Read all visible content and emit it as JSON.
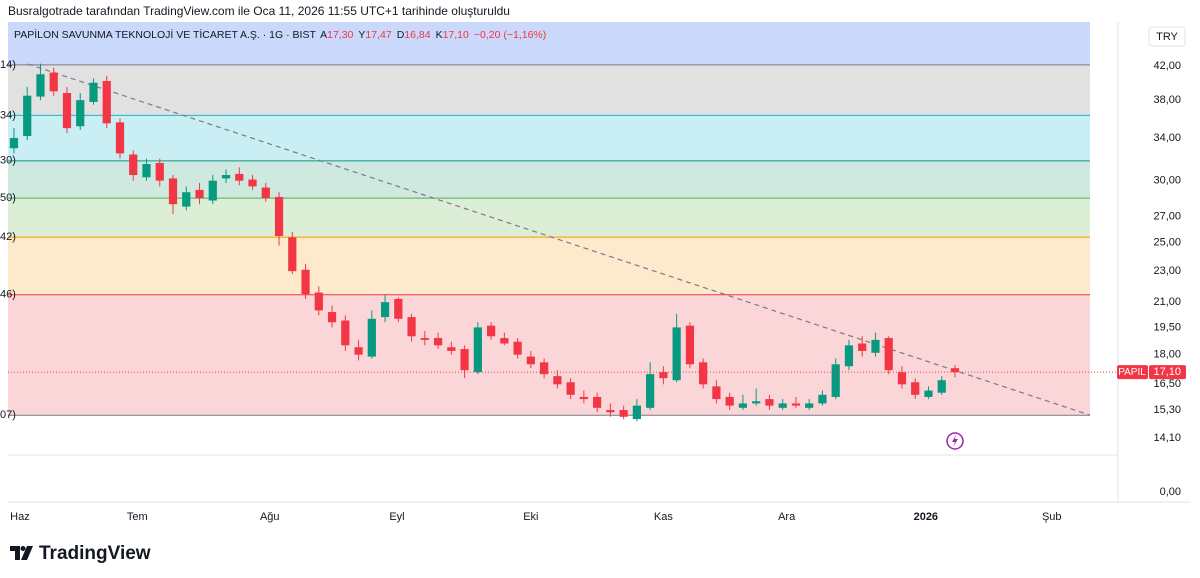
{
  "chart_data": {
    "type": "candlestick",
    "caption": "Busralgotrade tarafından TradingView.com ile Oca 11, 2026 11:55 UTC+1 tarihinde oluşturuldu",
    "title": "PAPİLON SAVUNMA TEKNOLOJİ VE TİCARET A.Ş. · 1G · BIST",
    "ohlc_legend": [
      {
        "key": "A",
        "value": "17,30"
      },
      {
        "key": "Y",
        "value": "17,47"
      },
      {
        "key": "D",
        "value": "16,84"
      },
      {
        "key": "K",
        "value": "17,10"
      }
    ],
    "change": "−0,20 (−1,16%)",
    "currency": "TRY",
    "symbol": "PAPIL",
    "last_price": {
      "value": 17.1,
      "label": "17,10"
    },
    "brand": "TradingView",
    "log_scale": true,
    "up_color": "#089981",
    "down_color": "#f23645",
    "xlim": [
      -0.45,
      83.3
    ],
    "ylim": [
      11.68,
      47.8
    ],
    "yticks": [
      {
        "value": 42,
        "label": "42,00"
      },
      {
        "value": 38,
        "label": "38,00"
      },
      {
        "value": 34,
        "label": "34,00"
      },
      {
        "value": 30,
        "label": "30,00"
      },
      {
        "value": 27,
        "label": "27,00"
      },
      {
        "value": 25,
        "label": "25,00"
      },
      {
        "value": 23,
        "label": "23,00"
      },
      {
        "value": 21,
        "label": "21,00"
      },
      {
        "value": 19.5,
        "label": "19,50"
      },
      {
        "value": 18,
        "label": "18,00"
      },
      {
        "value": 16.5,
        "label": "16,50"
      },
      {
        "value": 15.3,
        "label": "15,30"
      },
      {
        "value": 14.1,
        "label": "14,10"
      }
    ],
    "axis_floor_label": "0,00",
    "xticks": [
      {
        "value": 0.45,
        "label": "Haz"
      },
      {
        "value": 9.3,
        "label": "Tem"
      },
      {
        "value": 19.3,
        "label": "Ağu"
      },
      {
        "value": 28.9,
        "label": "Eyl"
      },
      {
        "value": 39.0,
        "label": "Eki"
      },
      {
        "value": 49.0,
        "label": "Kas"
      },
      {
        "value": 58.3,
        "label": "Ara"
      },
      {
        "value": 68.8,
        "label": "2026",
        "bold": true
      },
      {
        "value": 78.3,
        "label": "Şub"
      }
    ],
    "fib_levels": [
      {
        "value": 42.14,
        "label": "14)",
        "color": "#787b86",
        "fill": "#e1e1e1"
      },
      {
        "value": 36.34,
        "label": "34)",
        "color": "#22b5c9",
        "fill": "#c9eef4"
      },
      {
        "value": 31.8,
        "label": "30)",
        "color": "#089981",
        "fill": "#cfe9e0"
      },
      {
        "value": 28.5,
        "label": "50)",
        "color": "#4caf50",
        "fill": "#dcefd6"
      },
      {
        "value": 25.42,
        "label": "42)",
        "color": "#ff9800",
        "fill": "#fde9cb"
      },
      {
        "value": 21.46,
        "label": "46)",
        "color": "#f23645",
        "fill": "#fbd6d9"
      },
      {
        "value": 15.07,
        "label": "07)",
        "color": "#787b86",
        "fill": null
      }
    ],
    "trend_line": {
      "x": [
        1.06,
        81.2
      ],
      "y": [
        42.25,
        15.07
      ]
    },
    "open": [
      33,
      34.2,
      38.4,
      41.2,
      38.8,
      35.2,
      37.8,
      40.2,
      35.6,
      32.4,
      30.3,
      31.6,
      30.2,
      27.8,
      29.2,
      28.3,
      30.2,
      30.6,
      30.1,
      29.4,
      28.6,
      25.4,
      23.1,
      21.6,
      20.4,
      19.9,
      18.4,
      17.9,
      20.1,
      21.2,
      20.1,
      18.9,
      18.9,
      18.4,
      18.3,
      17.1,
      19.6,
      18.9,
      18.7,
      17.9,
      17.6,
      16.9,
      16.6,
      15.9,
      15.9,
      15.3,
      15.3,
      14.9,
      15.4,
      17.1,
      16.7,
      19.6,
      17.6,
      16.4,
      15.9,
      15.4,
      15.6,
      15.8,
      15.4,
      15.6,
      15.4,
      15.6,
      15.9,
      17.4,
      18.6,
      18.1,
      18.9,
      17.1,
      16.6,
      15.9,
      16.1,
      17.3
    ],
    "high": [
      35,
      39.5,
      42.3,
      41.8,
      39.5,
      38.8,
      40.5,
      40.8,
      36,
      32.8,
      32,
      32,
      30.5,
      29.5,
      29.8,
      30.5,
      31,
      31.2,
      30.5,
      29.8,
      29,
      25.8,
      23.5,
      22,
      20.8,
      20.2,
      18.8,
      20.5,
      21.5,
      21.3,
      20.3,
      19.3,
      19.2,
      18.7,
      18.5,
      19.8,
      19.8,
      19.2,
      18.9,
      18.2,
      17.8,
      17.2,
      16.8,
      16.2,
      16.1,
      15.6,
      15.5,
      15.8,
      17.6,
      17.4,
      20.3,
      19.8,
      17.8,
      16.7,
      16.1,
      16,
      16.3,
      16,
      15.8,
      15.9,
      15.8,
      16.2,
      17.8,
      18.8,
      19,
      19.2,
      19,
      17.4,
      16.8,
      16.4,
      16.9,
      17.47
    ],
    "low": [
      32.5,
      33.8,
      38,
      38.5,
      34.5,
      34.8,
      37.5,
      35,
      32,
      30,
      30,
      29.5,
      27.2,
      27.5,
      28,
      28,
      29.8,
      29.6,
      29.2,
      28.2,
      24.8,
      22.8,
      21.2,
      20.2,
      19.5,
      18.2,
      17.7,
      17.8,
      19.8,
      19.8,
      18.7,
      18.5,
      18.3,
      18,
      16.8,
      17,
      18.8,
      18.5,
      17.8,
      17.3,
      16.8,
      16.3,
      15.8,
      15.6,
      15.2,
      15,
      14.9,
      14.8,
      15.3,
      16.5,
      16.6,
      17.3,
      16.3,
      15.6,
      15.3,
      15.3,
      15.5,
      15.3,
      15.3,
      15.4,
      15.3,
      15.5,
      15.8,
      17.2,
      17.9,
      17.9,
      17,
      16.3,
      15.8,
      15.8,
      16,
      16.84
    ],
    "close": [
      34,
      38.5,
      41,
      39,
      35,
      38,
      40,
      35.5,
      32.5,
      30.5,
      31.5,
      30,
      28,
      29,
      28.5,
      30,
      30.5,
      30,
      29.5,
      28.5,
      25.5,
      23,
      21.5,
      20.5,
      19.8,
      18.5,
      18,
      20,
      21,
      20,
      19,
      18.8,
      18.5,
      18.2,
      17.2,
      19.5,
      19,
      18.6,
      18,
      17.5,
      17,
      16.5,
      16,
      15.8,
      15.4,
      15.2,
      15,
      15.5,
      17,
      16.8,
      19.5,
      17.5,
      16.5,
      15.8,
      15.5,
      15.6,
      15.7,
      15.5,
      15.6,
      15.5,
      15.6,
      16,
      17.5,
      18.5,
      18.2,
      18.8,
      17.2,
      16.5,
      16,
      16.2,
      16.7,
      17.1
    ]
  }
}
